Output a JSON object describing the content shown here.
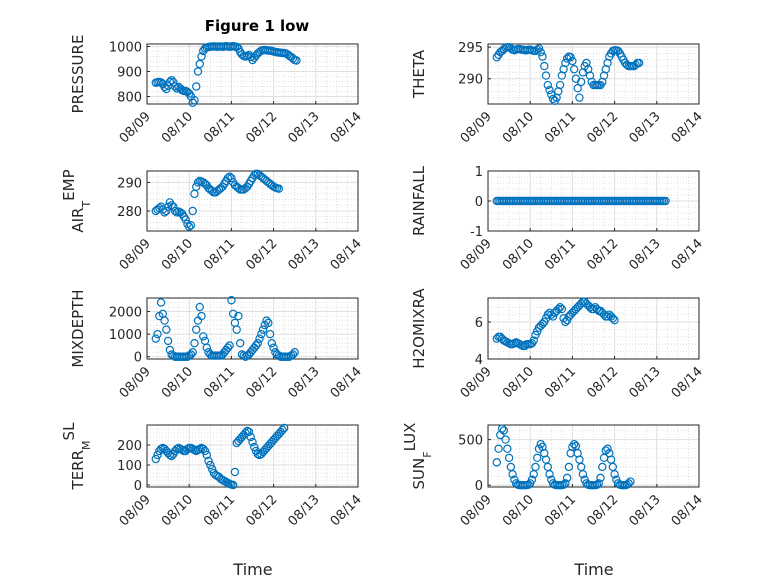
{
  "title": "Figure 1 low",
  "chart_data": {
    "type": "scatter",
    "marker": "open-circle",
    "marker_color": "#0072bd",
    "grid": true,
    "minor_grid": true,
    "xlabel": "Time",
    "x_ticks": [
      "08/09",
      "08/10",
      "08/11",
      "08/12",
      "08/13",
      "08/14"
    ],
    "xlim": [
      "08/09",
      "08/14"
    ],
    "series_time": [
      "08/09 05:00",
      "08/09 06:00",
      "08/09 07:00",
      "08/09 08:00",
      "08/09 09:00",
      "08/09 10:00",
      "08/09 11:00",
      "08/09 12:00",
      "08/09 13:00",
      "08/09 14:00",
      "08/09 15:00",
      "08/09 16:00",
      "08/09 17:00",
      "08/09 18:00",
      "08/09 19:00",
      "08/09 20:00",
      "08/09 21:00",
      "08/09 22:00",
      "08/09 23:00",
      "08/10 00:00",
      "08/10 01:00",
      "08/10 02:00",
      "08/10 03:00",
      "08/10 04:00",
      "08/10 05:00",
      "08/10 06:00",
      "08/10 07:00",
      "08/10 08:00",
      "08/10 09:00",
      "08/10 10:00",
      "08/10 11:00",
      "08/10 12:00",
      "08/10 13:00",
      "08/10 14:00",
      "08/10 15:00",
      "08/10 16:00",
      "08/10 17:00",
      "08/10 18:00",
      "08/10 19:00",
      "08/10 20:00",
      "08/10 21:00",
      "08/10 22:00",
      "08/10 23:00",
      "08/11 00:00",
      "08/11 01:00",
      "08/11 02:00",
      "08/11 03:00",
      "08/11 04:00",
      "08/11 05:00",
      "08/11 06:00",
      "08/11 07:00",
      "08/11 08:00",
      "08/11 09:00",
      "08/11 10:00",
      "08/11 11:00",
      "08/11 12:00",
      "08/11 13:00",
      "08/11 14:00",
      "08/11 15:00",
      "08/11 16:00",
      "08/11 17:00",
      "08/11 18:00",
      "08/11 19:00",
      "08/11 20:00",
      "08/11 21:00",
      "08/11 22:00",
      "08/11 23:00",
      "08/12 00:00",
      "08/12 01:00",
      "08/12 02:00",
      "08/12 03:00",
      "08/12 04:00",
      "08/12 05:00",
      "08/12 06:00",
      "08/12 07:00",
      "08/12 08:00",
      "08/12 09:00",
      "08/12 10:00",
      "08/12 11:00",
      "08/12 12:00",
      "08/12 13:00",
      "08/12 14:00",
      "08/12 15:00",
      "08/12 16:00",
      "08/12 17:00",
      "08/12 18:00",
      "08/12 19:00",
      "08/12 20:00",
      "08/12 21:00",
      "08/12 22:00",
      "08/12 23:00",
      "08/13 00:00",
      "08/13 01:00",
      "08/13 02:00",
      "08/13 03:00",
      "08/13 04:00",
      "08/13 05:00"
    ],
    "panels": [
      {
        "ylabel": "PRESSURE",
        "ylim": [
          770,
          1010
        ],
        "yticks": [
          800,
          900,
          1000
        ],
        "values": [
          855,
          857,
          858,
          856,
          850,
          838,
          830,
          843,
          858,
          865,
          857,
          840,
          832,
          838,
          832,
          825,
          822,
          822,
          818,
          812,
          800,
          775,
          785,
          840,
          900,
          930,
          960,
          982,
          992,
          996,
          998,
          999,
          1000,
          1000,
          1000,
          999,
          1000,
          1000,
          999,
          1000,
          1001,
          1000,
          999,
          1000,
          1001,
          1000,
          998,
          992,
          978,
          968,
          962,
          960,
          962,
          966,
          958,
          946,
          955,
          964,
          972,
          978,
          983,
          985,
          986,
          985,
          984,
          983,
          982,
          980,
          978,
          977,
          976,
          975,
          974,
          974,
          972,
          968,
          962,
          958,
          952,
          946,
          944
        ]
      },
      {
        "ylabel": "THETA",
        "ylim": [
          286,
          295.5
        ],
        "yticks": [
          290,
          295
        ],
        "values": [
          293.4,
          293.8,
          294.2,
          294.4,
          294.7,
          294.9,
          295,
          295,
          294.8,
          294.6,
          294.5,
          294.6,
          294.7,
          294.7,
          294.6,
          294.6,
          294.5,
          294.5,
          294.6,
          294.6,
          294.5,
          294.4,
          294.4,
          294.6,
          294.8,
          294.2,
          293.5,
          292,
          290.5,
          289,
          288.2,
          287.5,
          286.8,
          286.5,
          287,
          288,
          289,
          290.5,
          291.5,
          292.5,
          293.2,
          293.5,
          293.4,
          292.8,
          291.5,
          290,
          288.5,
          287,
          289.5,
          291,
          292,
          292.5,
          291.5,
          290.5,
          289.5,
          289,
          289,
          289,
          289,
          289,
          289.5,
          290.5,
          291.5,
          292.5,
          293.5,
          294,
          294.4,
          294.5,
          294.5,
          294.4,
          294,
          293.5,
          293,
          292.5,
          292.2,
          292,
          292,
          292,
          292,
          292.2,
          292.5,
          292.5
        ]
      },
      {
        "ylabel": "AIR_TEMP",
        "ylim": [
          273,
          294
        ],
        "yticks": [
          280,
          290
        ],
        "values": [
          280,
          280.5,
          281,
          281.5,
          280.5,
          279.5,
          280,
          281.5,
          283,
          282,
          281.5,
          280,
          279.5,
          279.8,
          279.5,
          279,
          278,
          277,
          275.5,
          274.5,
          275,
          280,
          286,
          288.5,
          290,
          290.5,
          290.3,
          290,
          289.5,
          289,
          288,
          287.5,
          287,
          286.5,
          286.5,
          287,
          287.5,
          288,
          288.5,
          289.5,
          290.5,
          291.5,
          292,
          291.5,
          290,
          289,
          288.5,
          288,
          287.5,
          287.5,
          287.5,
          288,
          288.5,
          289.5,
          290.5,
          291.5,
          292.5,
          293,
          293,
          292.5,
          292,
          291.5,
          291,
          290.5,
          290,
          289.5,
          289,
          288.5,
          288.2,
          288,
          287.8
        ]
      },
      {
        "ylabel": "RAINFALL",
        "ylim": [
          -1,
          1
        ],
        "yticks": [
          -1,
          0,
          1
        ],
        "values": [
          0,
          0,
          0,
          0,
          0,
          0,
          0,
          0,
          0,
          0,
          0,
          0,
          0,
          0,
          0,
          0,
          0,
          0,
          0,
          0,
          0,
          0,
          0,
          0,
          0,
          0,
          0,
          0,
          0,
          0,
          0,
          0,
          0,
          0,
          0,
          0,
          0,
          0,
          0,
          0,
          0,
          0,
          0,
          0,
          0,
          0,
          0,
          0,
          0,
          0,
          0,
          0,
          0,
          0,
          0,
          0,
          0,
          0,
          0,
          0,
          0,
          0,
          0,
          0,
          0,
          0,
          0,
          0,
          0,
          0,
          0,
          0,
          0,
          0,
          0,
          0,
          0,
          0,
          0,
          0,
          0,
          0,
          0,
          0,
          0,
          0,
          0,
          0,
          0,
          0,
          0,
          0,
          0,
          0,
          0,
          0,
          0
        ]
      },
      {
        "ylabel": "MIXDEPTH",
        "ylim": [
          -100,
          2600
        ],
        "yticks": [
          0,
          1000,
          2000
        ],
        "values": [
          800,
          1000,
          1800,
          2400,
          1900,
          1600,
          1200,
          700,
          300,
          100,
          50,
          0,
          0,
          0,
          0,
          0,
          0,
          0,
          0,
          50,
          100,
          200,
          600,
          1200,
          1600,
          2200,
          1800,
          900,
          700,
          400,
          200,
          100,
          50,
          50,
          50,
          50,
          50,
          50,
          100,
          200,
          300,
          400,
          500,
          2500,
          1900,
          1500,
          1200,
          1800,
          600,
          100,
          50,
          0,
          50,
          100,
          200,
          300,
          400,
          500,
          600,
          800,
          1000,
          1200,
          1400,
          1600,
          1500,
          1000,
          600,
          400,
          200,
          100,
          50,
          0,
          0,
          0,
          0,
          0,
          0,
          50,
          100,
          200
        ]
      },
      {
        "ylabel": "H2OMIXRA",
        "ylim": [
          4,
          7.3
        ],
        "yticks": [
          4,
          6
        ],
        "values": [
          5.1,
          5.2,
          5.2,
          5.1,
          5,
          4.95,
          4.9,
          4.85,
          4.8,
          4.8,
          4.85,
          4.9,
          4.85,
          4.8,
          4.75,
          4.7,
          4.7,
          4.8,
          4.8,
          4.8,
          4.85,
          5,
          5.3,
          5.5,
          5.7,
          5.8,
          5.9,
          6,
          6.2,
          6.4,
          6.5,
          6.4,
          6.3,
          6.5,
          6.6,
          6.7,
          6.8,
          6.7,
          6.2,
          6,
          6.1,
          6.3,
          6.4,
          6.5,
          6.6,
          6.7,
          6.8,
          6.9,
          7,
          7.1,
          7.1,
          7,
          6.9,
          6.8,
          6.7,
          6.7,
          6.8,
          6.7,
          6.6,
          6.6,
          6.5,
          6.4,
          6.3,
          6.3,
          6.4,
          6.3,
          6.2,
          6.1
        ]
      },
      {
        "ylabel": "TERR_MSL",
        "ylim": [
          -10,
          300
        ],
        "yticks": [
          0,
          100,
          200
        ],
        "values": [
          130,
          150,
          170,
          180,
          185,
          180,
          170,
          160,
          150,
          145,
          155,
          170,
          180,
          185,
          180,
          175,
          170,
          170,
          180,
          185,
          185,
          180,
          175,
          170,
          175,
          180,
          185,
          180,
          170,
          150,
          120,
          100,
          80,
          60,
          50,
          45,
          40,
          30,
          25,
          20,
          15,
          10,
          5,
          2,
          0,
          65,
          210,
          220,
          230,
          240,
          250,
          260,
          270,
          265,
          240,
          215,
          190,
          170,
          155,
          150,
          155,
          165,
          175,
          185,
          195,
          205,
          215,
          225,
          235,
          245,
          255,
          265,
          275,
          285
        ]
      },
      {
        "ylabel": "SUN_FLUX",
        "ylim": [
          -20,
          660
        ],
        "yticks": [
          0,
          500
        ],
        "values": [
          250,
          400,
          550,
          620,
          600,
          500,
          400,
          300,
          200,
          120,
          60,
          20,
          5,
          0,
          0,
          0,
          0,
          0,
          5,
          20,
          60,
          120,
          200,
          300,
          400,
          450,
          420,
          350,
          280,
          200,
          120,
          60,
          20,
          5,
          0,
          0,
          0,
          0,
          5,
          20,
          80,
          200,
          350,
          420,
          450,
          430,
          350,
          280,
          200,
          120,
          60,
          20,
          5,
          0,
          0,
          0,
          0,
          5,
          20,
          80,
          200,
          300,
          380,
          400,
          350,
          280,
          200,
          120,
          60,
          20,
          5,
          0,
          0,
          0,
          5,
          20,
          40
        ]
      }
    ]
  }
}
